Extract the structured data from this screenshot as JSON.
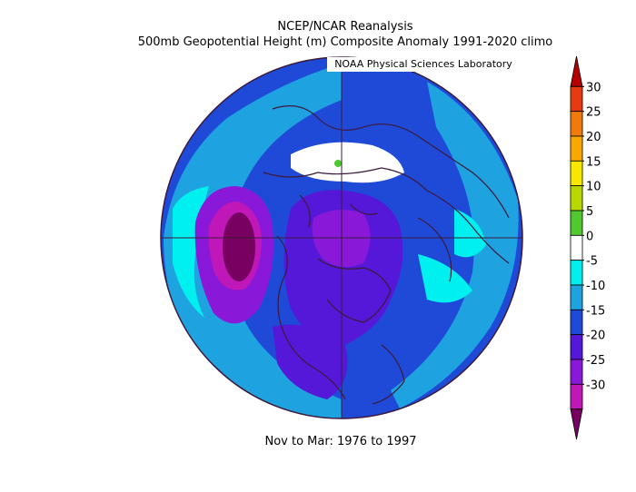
{
  "header": {
    "line1": "NCEP/NCAR Reanalysis",
    "line2": "500mb Geopotential Height (m) Composite Anomaly 1991-2020 climo"
  },
  "credit": "NOAA Physical Sciences Laboratory",
  "footer": "Nov to Mar: 1976 to 1997",
  "colorbar": {
    "labels": [
      "30",
      "25",
      "20",
      "15",
      "10",
      "5",
      "0",
      "-5",
      "-10",
      "-15",
      "-20",
      "-25",
      "-30"
    ],
    "colors": [
      "#b40000",
      "#e83a10",
      "#f07a0a",
      "#f8a800",
      "#f8e800",
      "#b8d800",
      "#50c830",
      "#ffffff",
      "#00f0f0",
      "#1fa3e0",
      "#1f4ad8",
      "#5518d8",
      "#8a18d8",
      "#c018b8",
      "#780060"
    ]
  }
}
